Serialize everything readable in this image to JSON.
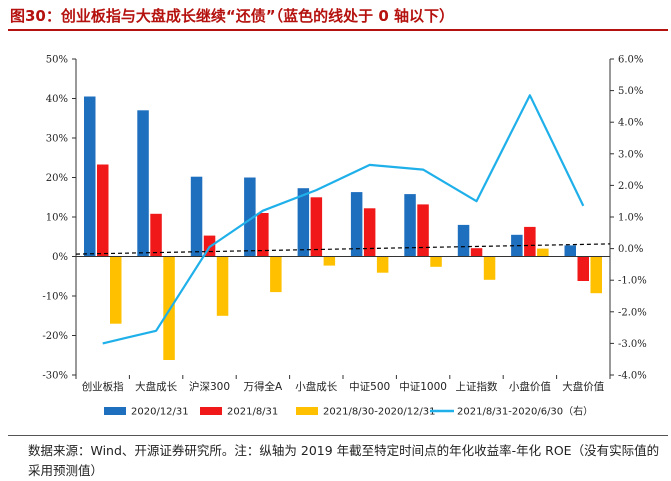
{
  "title": "图30：创业板指与大盘成长继续“还债”（蓝色的线处于 0 轴以下）",
  "source": "数据来源：Wind、开源证券研究所。注：纵轴为 2019 年截至特定时间点的年化收益率-年化 ROE（没有实际值的采用预测值）",
  "chart_data": {
    "type": "bar",
    "categories": [
      "创业板指",
      "大盘成长",
      "沪深300",
      "万得全A",
      "小盘成长",
      "中证500",
      "中证1000",
      "上证指数",
      "小盘价值",
      "大盘价值"
    ],
    "series": [
      {
        "name": "2020/12/31",
        "type": "bar",
        "axis": "left",
        "color": "#1f6fbf",
        "values": [
          40.5,
          37,
          20.2,
          20,
          17.3,
          16.3,
          15.8,
          8,
          5.5,
          2.8
        ]
      },
      {
        "name": "2021/8/31",
        "type": "bar",
        "axis": "left",
        "color": "#f01818",
        "values": [
          23.3,
          10.8,
          5.3,
          11,
          15,
          12.2,
          13.2,
          2.1,
          7.5,
          -6.2
        ]
      },
      {
        "name": "2021/8/30-2020/12/31",
        "type": "bar",
        "axis": "left",
        "color": "#ffc000",
        "values": [
          -17,
          -26.2,
          -15,
          -9,
          -2.3,
          -4.1,
          -2.6,
          -5.9,
          2,
          -9.3
        ]
      },
      {
        "name": "2021/8/31-2020/6/30（右）",
        "type": "line",
        "axis": "right",
        "color": "#1fb0ea",
        "values": [
          -3.0,
          -2.6,
          0.05,
          1.2,
          1.85,
          2.65,
          2.5,
          1.5,
          4.85,
          1.35
        ]
      }
    ],
    "left_axis": {
      "min": -30,
      "max": 50,
      "step": 10,
      "labels": [
        "50%",
        "40%",
        "30%",
        "20%",
        "10%",
        "0%",
        "-10%",
        "-20%",
        "-30%"
      ]
    },
    "right_axis": {
      "min": -4,
      "max": 6,
      "step": 1,
      "labels": [
        "6.0%",
        "5.0%",
        "4.0%",
        "3.0%",
        "2.0%",
        "1.0%",
        "0.0%",
        "-1.0%",
        "-2.0%",
        "-3.0%",
        "-4.0%"
      ]
    },
    "trendline": {
      "style": "dashed",
      "color": "#000000",
      "start": 0.6,
      "end": 3.2
    },
    "legend_position": "bottom"
  }
}
